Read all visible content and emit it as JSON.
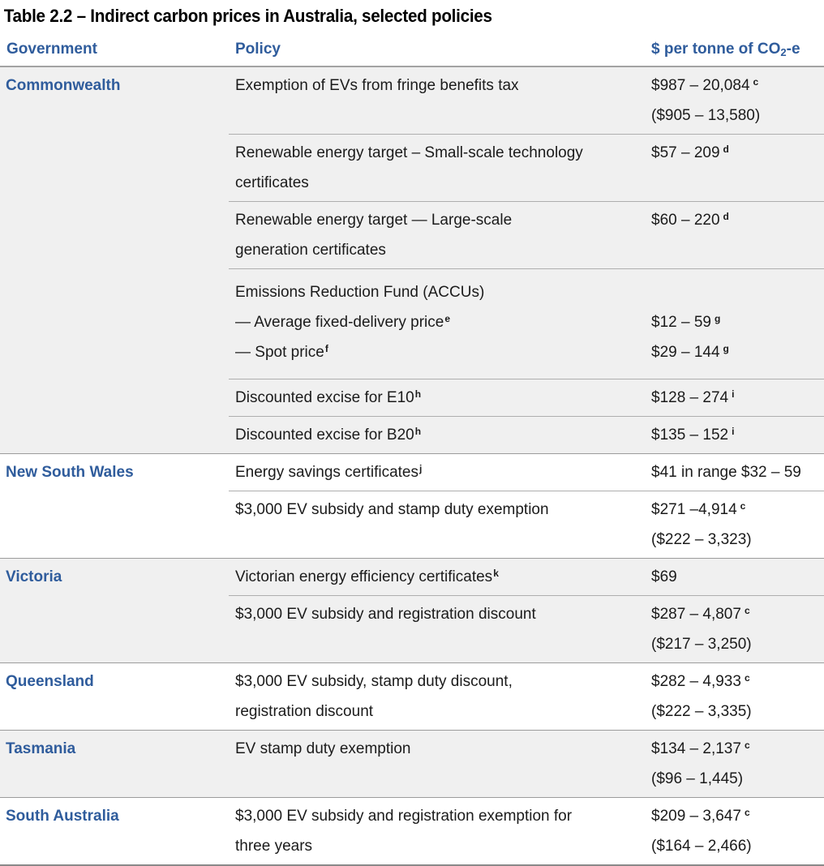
{
  "title": "Table 2.2 – Indirect carbon prices in Australia, selected policies",
  "header": {
    "government": "Government",
    "policy": "Policy",
    "price_pre": "$ per tonne of CO",
    "price_sub": "2",
    "price_post": "-e"
  },
  "colors": {
    "accent_blue": "#2f5c9c",
    "shaded_section_bg": "#f0f0f0",
    "rule_gray": "#9c9c9c"
  },
  "sections": [
    {
      "government": "Commonwealth",
      "shaded": true,
      "rows": [
        {
          "lines": [
            {
              "p": "Exemption of EVs from fringe benefits tax",
              "v": "$987 – 20,084",
              "vs": "c"
            },
            {
              "p": "",
              "v": "($905 – 13,580)"
            }
          ]
        },
        {
          "lines": [
            {
              "p": "Renewable energy target – Small-scale technology",
              "v": "$57 – 209",
              "vs": "d"
            },
            {
              "p": "certificates"
            }
          ]
        },
        {
          "lines": [
            {
              "p": "Renewable energy target — Large-scale",
              "v": "$60 – 220",
              "vs": "d"
            },
            {
              "p": "generation certificates"
            }
          ]
        },
        {
          "block": true,
          "lines": [
            {
              "p": "Emissions Reduction Fund (ACCUs)"
            },
            {
              "p": "— Average fixed-delivery price",
              "ps": "e",
              "v": "$12 – 59",
              "vs": "g"
            },
            {
              "p": "— Spot price",
              "ps": "f",
              "v": "$29 – 144",
              "vs": "g"
            }
          ]
        },
        {
          "lines": [
            {
              "p": "Discounted excise for E10",
              "ps": "h",
              "v": "$128 – 274",
              "vs": "i"
            }
          ]
        },
        {
          "lines": [
            {
              "p": "Discounted excise for B20",
              "ps": "h",
              "v": "$135 – 152",
              "vs": "i"
            }
          ]
        }
      ]
    },
    {
      "government": "New South Wales",
      "shaded": false,
      "rows": [
        {
          "lines": [
            {
              "p": "Energy savings certificates",
              "ps": "j",
              "v": "$41 in range $32 – 59"
            }
          ]
        },
        {
          "lines": [
            {
              "p": "$3,000 EV subsidy and stamp duty exemption",
              "v": "$271 –4,914",
              "vs": "c"
            },
            {
              "p": "",
              "v": "($222 – 3,323)"
            }
          ]
        }
      ]
    },
    {
      "government": "Victoria",
      "shaded": true,
      "rows": [
        {
          "lines": [
            {
              "p": "Victorian energy efficiency certificates",
              "ps": "k",
              "v": "$69"
            }
          ]
        },
        {
          "lines": [
            {
              "p": "$3,000 EV subsidy and registration discount",
              "v": "$287 – 4,807",
              "vs": "c"
            },
            {
              "p": "",
              "v": "($217 – 3,250)"
            }
          ]
        }
      ]
    },
    {
      "government": "Queensland",
      "shaded": false,
      "rows": [
        {
          "lines": [
            {
              "p": "$3,000 EV subsidy, stamp duty discount,",
              "v": "$282 – 4,933",
              "vs": "c"
            },
            {
              "p": "registration discount",
              "v": "($222 – 3,335)"
            }
          ]
        }
      ]
    },
    {
      "government": "Tasmania",
      "shaded": true,
      "rows": [
        {
          "lines": [
            {
              "p": "EV stamp duty exemption",
              "v": "$134 – 2,137",
              "vs": "c"
            },
            {
              "p": "",
              "v": "($96 – 1,445)"
            }
          ]
        }
      ]
    },
    {
      "government": "South Australia",
      "shaded": false,
      "rows": [
        {
          "lines": [
            {
              "p": "$3,000 EV subsidy and registration exemption for",
              "v": "$209 – 3,647",
              "vs": "c"
            },
            {
              "p": "three years",
              "v": "($164 – 2,466)"
            }
          ]
        }
      ]
    }
  ]
}
